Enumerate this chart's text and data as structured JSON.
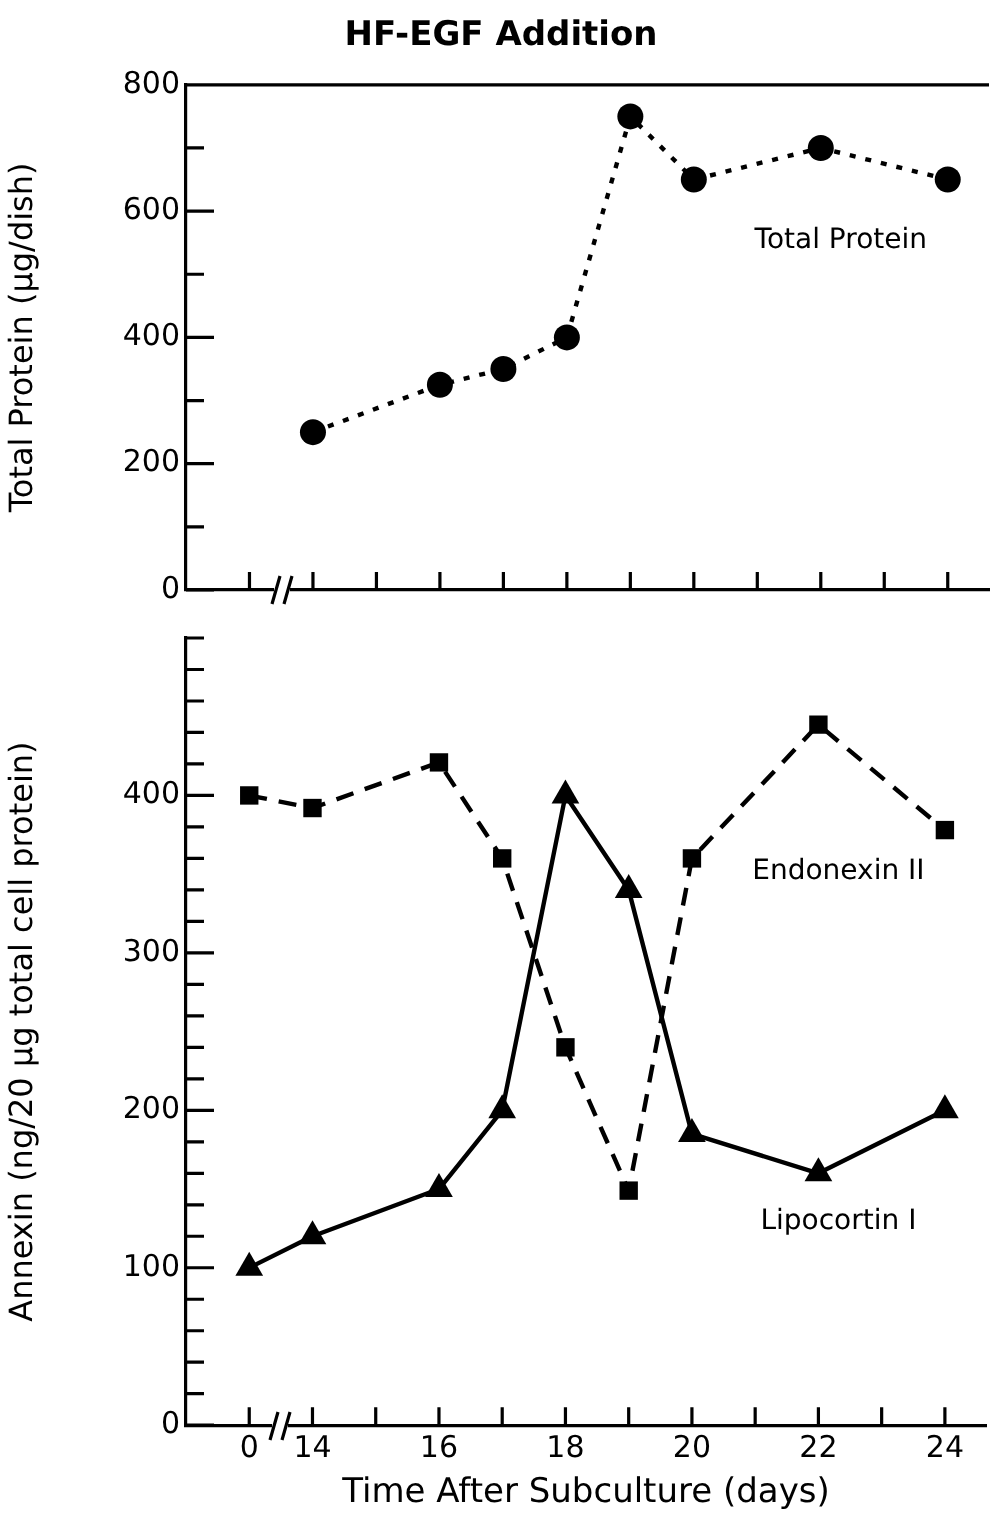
{
  "chart_data": [
    {
      "type": "line",
      "title": "HF-EGF Addition",
      "ylabel": "Total Protein (µg/dish)",
      "categories": [
        "0",
        "14",
        null,
        "16",
        null,
        "18",
        null,
        "20",
        null,
        "22",
        null,
        "24"
      ],
      "series": [
        {
          "name": "Total Protein",
          "color": "#000000",
          "marker": "circle",
          "line_style": "dotted",
          "values": [
            null,
            250,
            null,
            325,
            350,
            400,
            750,
            650,
            null,
            700,
            null,
            650
          ]
        }
      ],
      "ylim": [
        0,
        800
      ],
      "yticks": [
        0,
        {
          "value": 100,
          "label": null
        },
        200,
        {
          "value": 300,
          "label": null
        },
        400,
        {
          "value": 500,
          "label": null
        },
        600,
        {
          "value": 700,
          "label": null
        },
        800
      ],
      "grid": false,
      "legend": false,
      "tick_labels": "y"
    },
    {
      "type": "line",
      "xlabel": "Time After Subculture (days)",
      "ylabel": "Annexin (ng/20 µg total cell protein)",
      "categories": [
        "0",
        "14",
        null,
        "16",
        null,
        "18",
        null,
        "20",
        null,
        "22",
        null,
        "24"
      ],
      "series": [
        {
          "name": "Endonexin II",
          "color": "#000000",
          "marker": "square",
          "line_style": "dashed",
          "values": [
            400,
            392,
            null,
            421,
            360,
            240,
            149,
            360,
            null,
            445,
            null,
            378
          ]
        },
        {
          "name": "Lipocortin I",
          "color": "#000000",
          "marker": "triangle",
          "line_style": "solid",
          "values": [
            100,
            120,
            null,
            150,
            200,
            400,
            340,
            185,
            null,
            160,
            null,
            200
          ]
        }
      ],
      "ylim": [
        0,
        500
      ],
      "yticks": [
        0,
        {
          "value": 20,
          "label": null
        },
        {
          "value": 40,
          "label": null
        },
        {
          "value": 60,
          "label": null
        },
        {
          "value": 80,
          "label": null
        },
        100,
        {
          "value": 120,
          "label": null
        },
        {
          "value": 140,
          "label": null
        },
        {
          "value": 160,
          "label": null
        },
        {
          "value": 180,
          "label": null
        },
        200,
        {
          "value": 220,
          "label": null
        },
        {
          "value": 240,
          "label": null
        },
        {
          "value": 260,
          "label": null
        },
        {
          "value": 280,
          "label": null
        },
        300,
        {
          "value": 320,
          "label": null
        },
        {
          "value": 340,
          "label": null
        },
        {
          "value": 360,
          "label": null
        },
        {
          "value": 380,
          "label": null
        },
        400,
        {
          "value": 420,
          "label": null
        },
        {
          "value": 440,
          "label": null
        },
        {
          "value": 460,
          "label": null
        },
        {
          "value": 480,
          "label": null
        },
        {
          "value": 500,
          "label": null
        }
      ],
      "grid": false,
      "legend": false
    }
  ]
}
